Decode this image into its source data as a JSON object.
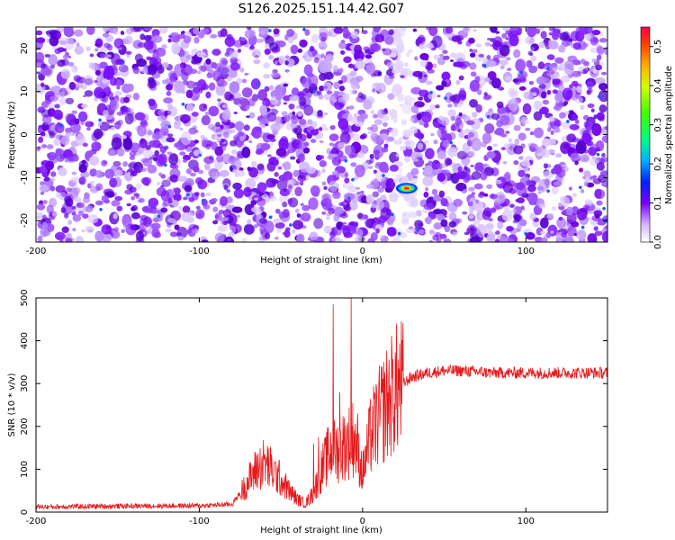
{
  "chart_data": [
    {
      "type": "heatmap",
      "title": "S126.2025.151.14.42.G07",
      "xlabel": "Height of straight line (km)",
      "ylabel": "Frequency (Hz)",
      "xlim": [
        -200,
        150
      ],
      "ylim": [
        -25,
        25
      ],
      "xticks": [
        "-200",
        "-100",
        "0",
        "100"
      ],
      "yticks": [
        "-20",
        "-10",
        "0",
        "10",
        "20"
      ],
      "colorbar": {
        "label": "Normalized spectral amplitude",
        "range": [
          0,
          0.55
        ],
        "ticks": [
          "0.0",
          "0.1",
          "0.2",
          "0.3",
          "0.4",
          "0.5"
        ],
        "colormap": "rainbow"
      },
      "background_noise_amplitude": 0.05,
      "peak": {
        "x": 27,
        "y": -12.5,
        "amplitude": 0.5
      }
    },
    {
      "type": "line",
      "xlabel": "Height of straight line (km)",
      "ylabel": "SNR (10 * v/v)",
      "xlim": [
        -200,
        150
      ],
      "ylim": [
        0,
        500
      ],
      "xticks": [
        "-200",
        "-100",
        "0",
        "100"
      ],
      "yticks": [
        "0",
        "100",
        "200",
        "300",
        "400",
        "500"
      ],
      "color": "#e41a1c",
      "series_profile": {
        "x": [
          -200,
          -150,
          -100,
          -80,
          -72,
          -65,
          -60,
          -55,
          -50,
          -45,
          -40,
          -35,
          -30,
          -25,
          -20,
          -15,
          -10,
          -5,
          0,
          5,
          10,
          15,
          20,
          25,
          30,
          35,
          40,
          50,
          60,
          80,
          100,
          120,
          150
        ],
        "y": [
          12,
          14,
          15,
          18,
          60,
          100,
          115,
          95,
          75,
          50,
          30,
          20,
          45,
          100,
          140,
          145,
          160,
          175,
          90,
          180,
          220,
          255,
          285,
          300,
          315,
          320,
          325,
          330,
          330,
          325,
          325,
          325,
          325
        ]
      },
      "spikes": [
        {
          "x": -30,
          "y": 160
        },
        {
          "x": -27,
          "y": 175
        },
        {
          "x": -18,
          "y": 485
        },
        {
          "x": -14,
          "y": 280
        },
        {
          "x": -7,
          "y": 500
        },
        {
          "x": -3,
          "y": 230
        }
      ]
    }
  ]
}
